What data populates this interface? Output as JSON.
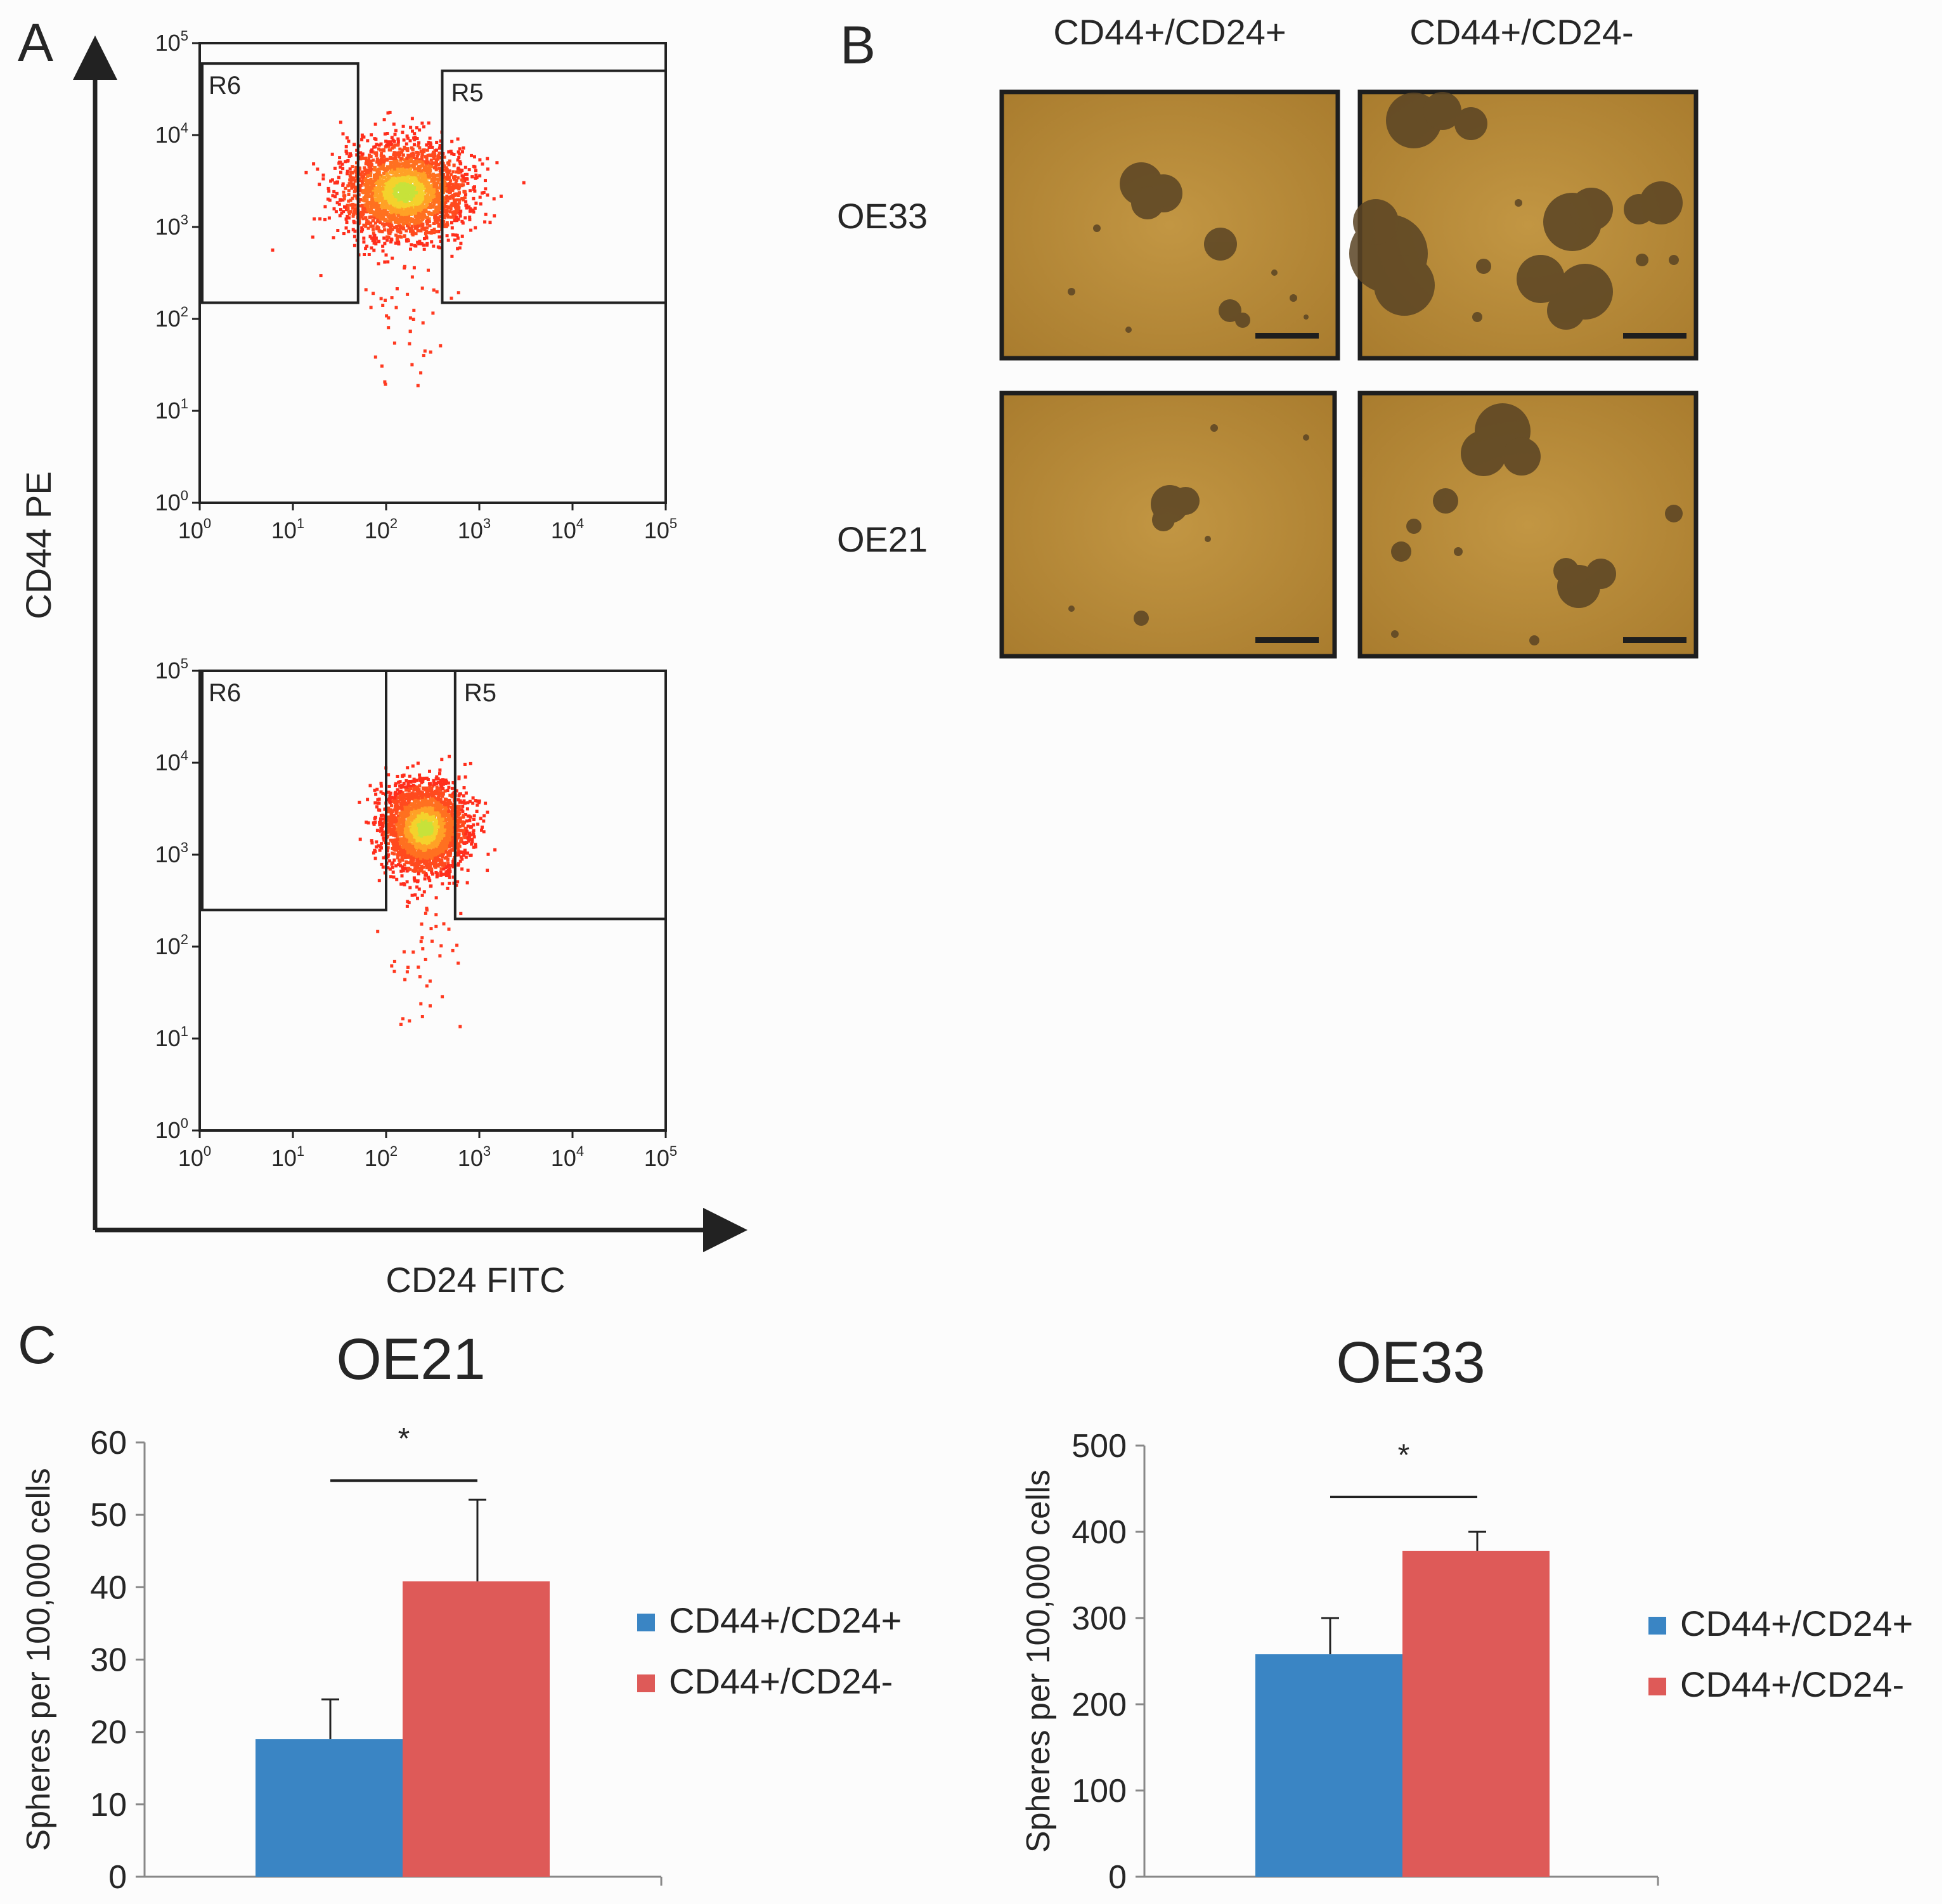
{
  "panel_a": {
    "letter": "A",
    "x_axis_label": "CD24 FITC",
    "y_axis_label": "CD44 PE",
    "plots": [
      {
        "gates": [
          {
            "label": "R6"
          },
          {
            "label": "R5"
          }
        ]
      },
      {
        "gates": [
          {
            "label": "R6"
          },
          {
            "label": "R5"
          }
        ]
      }
    ],
    "decade_ticks": [
      {
        "base": "10",
        "exp": "0"
      },
      {
        "base": "10",
        "exp": "1"
      },
      {
        "base": "10",
        "exp": "2"
      },
      {
        "base": "10",
        "exp": "3"
      },
      {
        "base": "10",
        "exp": "4"
      },
      {
        "base": "10",
        "exp": "5"
      }
    ]
  },
  "panel_b": {
    "letter": "B",
    "columns": [
      "CD44+/CD24+",
      "CD44+/CD24-"
    ],
    "rows": [
      "OE33",
      "OE21"
    ],
    "colors": {
      "background": "#b88b3a",
      "cluster": "#5a4424",
      "scale_bar": "#1e1e1e"
    }
  },
  "panel_c": {
    "letter": "C",
    "legend": [
      "CD44+/CD24+",
      "CD44+/CD24-"
    ],
    "colors": {
      "CD44+/CD24+": "#3a85c4",
      "CD44+/CD24-": "#de5a58"
    },
    "significance_mark": "*"
  },
  "chart_data": [
    {
      "type": "scatter",
      "xlabel": "CD24 FITC",
      "ylabel": "CD44 PE",
      "scale": "log",
      "xlim": [
        1,
        100000
      ],
      "ylim": [
        1,
        100000
      ],
      "xticks": [
        "10^0",
        "10^1",
        "10^2",
        "10^3",
        "10^4",
        "10^5"
      ],
      "yticks": [
        "10^0",
        "10^1",
        "10^2",
        "10^3",
        "10^4",
        "10^5"
      ],
      "gates": [
        {
          "label": "R6",
          "x": [
            1,
            50
          ],
          "y": [
            150,
            60000
          ]
        },
        {
          "label": "R5",
          "x": [
            400,
            100000
          ],
          "y": [
            150,
            50000
          ]
        }
      ],
      "population_center": {
        "x": 150,
        "y": 2500
      }
    },
    {
      "type": "scatter",
      "xlabel": "CD24 FITC",
      "ylabel": "CD44 PE",
      "scale": "log",
      "xlim": [
        1,
        100000
      ],
      "ylim": [
        1,
        100000
      ],
      "xticks": [
        "10^0",
        "10^1",
        "10^2",
        "10^3",
        "10^4",
        "10^5"
      ],
      "yticks": [
        "10^0",
        "10^1",
        "10^2",
        "10^3",
        "10^4",
        "10^5"
      ],
      "gates": [
        {
          "label": "R6",
          "x": [
            1,
            100
          ],
          "y": [
            250,
            100000
          ]
        },
        {
          "label": "R5",
          "x": [
            550,
            100000
          ],
          "y": [
            200,
            100000
          ]
        }
      ],
      "population_center": {
        "x": 250,
        "y": 2000
      }
    },
    {
      "type": "bar",
      "title": "OE21",
      "ylabel": "Spheres per 100,000 cells",
      "ylim": [
        0,
        60
      ],
      "yticks": [
        0,
        10,
        20,
        30,
        40,
        50,
        60
      ],
      "series": [
        {
          "name": "CD44+/CD24+",
          "values": [
            19
          ],
          "error": [
            5.5
          ]
        },
        {
          "name": "CD44+/CD24-",
          "values": [
            40.8
          ],
          "error": [
            11.3
          ]
        }
      ],
      "significance": "*",
      "legend": "right"
    },
    {
      "type": "bar",
      "title": "OE33",
      "ylabel": "Spheres per 100,000 cells",
      "ylim": [
        0,
        500
      ],
      "yticks": [
        0,
        100,
        200,
        300,
        400,
        500
      ],
      "series": [
        {
          "name": "CD44+/CD24+",
          "values": [
            258
          ],
          "error": [
            42
          ]
        },
        {
          "name": "CD44+/CD24-",
          "values": [
            378
          ],
          "error": [
            22
          ]
        }
      ],
      "significance": "*",
      "legend": "right"
    }
  ]
}
